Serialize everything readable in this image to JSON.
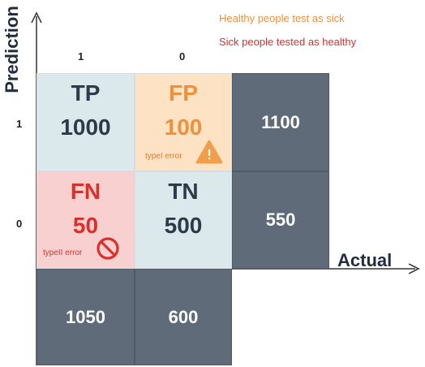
{
  "axes": {
    "y_label": "Prediction",
    "x_label": "Actual",
    "x_ticks": [
      "1",
      "0"
    ],
    "y_ticks": [
      "1",
      "0"
    ]
  },
  "legend": {
    "fp_note": "Healthy people test as sick",
    "fn_note": "Sick people tested as healthy"
  },
  "cells": {
    "tp": {
      "label": "TP",
      "value": "1000"
    },
    "fp": {
      "label": "FP",
      "value": "100",
      "error_label": "typeI error"
    },
    "fn": {
      "label": "FN",
      "value": "50",
      "error_label": "typeII error"
    },
    "tn": {
      "label": "TN",
      "value": "500"
    }
  },
  "totals": {
    "row1": "1100",
    "row0": "550",
    "col1": "1050",
    "col0": "600"
  },
  "colors": {
    "tp_bg": "#dbe9ec",
    "tn_bg": "#dbe9ec",
    "fp_bg": "#fde3c4",
    "fn_bg": "#f8d0d0",
    "total_bg": "#5f6b79",
    "dark_text": "#2d3a4a",
    "orange": "#f0903a",
    "red": "#d9302b"
  },
  "icons": {
    "fp_icon": "warning-triangle-icon",
    "fn_icon": "prohibited-icon"
  }
}
